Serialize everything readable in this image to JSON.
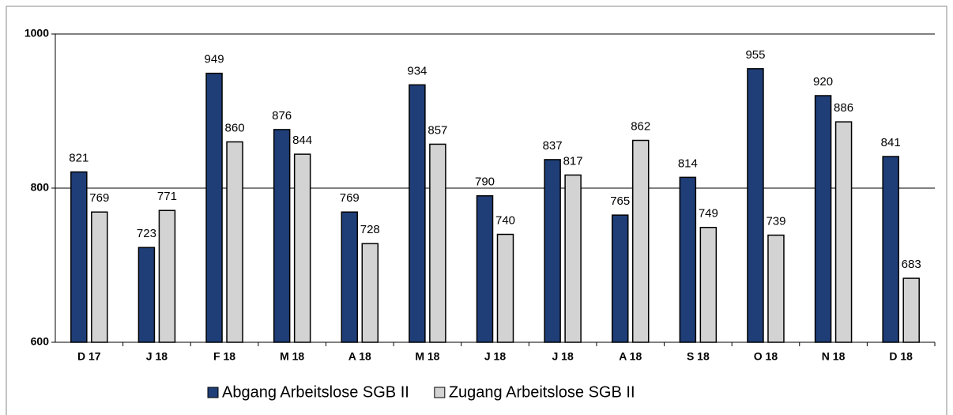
{
  "chart_data": {
    "type": "bar",
    "categories": [
      "D 17",
      "J 18",
      "F 18",
      "M 18",
      "A 18",
      "M 18",
      "J 18",
      "J 18",
      "A 18",
      "S 18",
      "O 18",
      "N 18",
      "D 18"
    ],
    "series": [
      {
        "name": "Abgang Arbeitslose SGB II",
        "color": "#1f3e78",
        "values": [
          821,
          723,
          949,
          876,
          769,
          934,
          790,
          837,
          765,
          814,
          955,
          920,
          841
        ]
      },
      {
        "name": "Zugang Arbeitslose SGB II",
        "color": "#d3d3d3",
        "values": [
          769,
          771,
          860,
          844,
          728,
          857,
          740,
          817,
          862,
          749,
          739,
          886,
          683
        ]
      }
    ],
    "ylim": [
      600,
      1000
    ],
    "yticks": [
      600,
      800,
      1000
    ],
    "grid": true,
    "legend": "bottom"
  }
}
